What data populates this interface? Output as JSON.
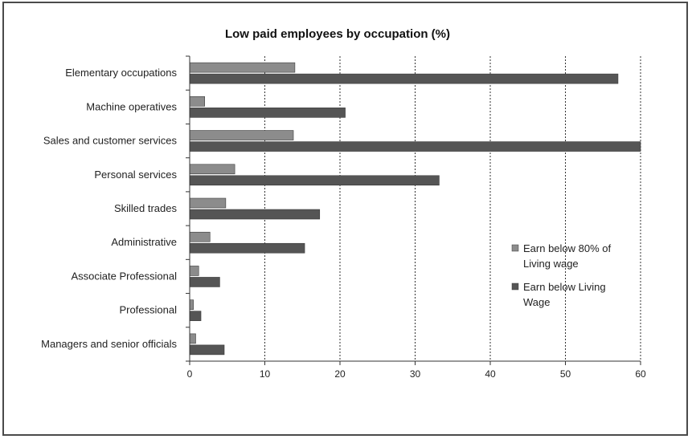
{
  "chart_data": {
    "type": "bar",
    "orientation": "horizontal",
    "title": "Low paid employees by occupation (%)",
    "categories": [
      "Elementary occupations",
      "Machine operatives",
      "Sales and customer services",
      "Personal services",
      "Skilled trades",
      "Administrative",
      "Associate  Professional",
      "Professional",
      "Managers and senior officials"
    ],
    "series": [
      {
        "name": "Earn below 80% of Living wage",
        "legend_lines": [
          "Earn below 80% of",
          "Living wage"
        ],
        "color": "#8c8c8c",
        "values": [
          14,
          2,
          13.8,
          6,
          4.8,
          2.7,
          1.2,
          0.5,
          0.8
        ]
      },
      {
        "name": "Earn below Living Wage",
        "legend_lines": [
          "Earn below Living",
          "Wage"
        ],
        "color": "#555555",
        "values": [
          57,
          20.7,
          60,
          33.2,
          17.3,
          15.3,
          4,
          1.5,
          4.6
        ]
      }
    ],
    "xlim": [
      0,
      60
    ],
    "xticks": [
      0,
      10,
      20,
      30,
      40,
      50,
      60
    ],
    "xlabel": "",
    "ylabel": "",
    "grid": "vertical dotted",
    "legend_position": "right"
  }
}
